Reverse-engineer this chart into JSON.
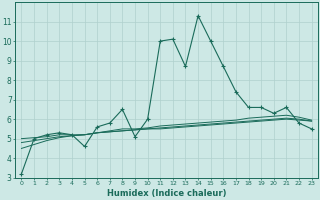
{
  "xlabel": "Humidex (Indice chaleur)",
  "x": [
    0,
    1,
    2,
    3,
    4,
    5,
    6,
    7,
    8,
    9,
    10,
    11,
    12,
    13,
    14,
    15,
    16,
    17,
    18,
    19,
    20,
    21,
    22,
    23
  ],
  "y_main": [
    3.2,
    5.0,
    5.2,
    5.3,
    5.2,
    4.6,
    5.6,
    5.8,
    6.5,
    5.1,
    6.0,
    10.0,
    10.1,
    8.7,
    11.3,
    10.0,
    8.7,
    7.4,
    6.6,
    6.6,
    6.3,
    6.6,
    5.8,
    5.5
  ],
  "y_trend1": [
    5.0,
    5.05,
    5.1,
    5.2,
    5.2,
    5.2,
    5.3,
    5.35,
    5.4,
    5.45,
    5.5,
    5.5,
    5.55,
    5.6,
    5.65,
    5.7,
    5.75,
    5.8,
    5.85,
    5.9,
    5.95,
    6.0,
    5.95,
    5.9
  ],
  "y_trend2": [
    4.8,
    4.9,
    5.0,
    5.1,
    5.15,
    5.2,
    5.3,
    5.35,
    5.4,
    5.45,
    5.5,
    5.55,
    5.6,
    5.65,
    5.7,
    5.75,
    5.8,
    5.85,
    5.9,
    5.95,
    6.0,
    6.05,
    6.0,
    5.9
  ],
  "y_trend3": [
    4.5,
    4.7,
    4.9,
    5.05,
    5.15,
    5.2,
    5.3,
    5.4,
    5.5,
    5.5,
    5.55,
    5.65,
    5.7,
    5.75,
    5.8,
    5.85,
    5.9,
    5.95,
    6.05,
    6.1,
    6.15,
    6.2,
    6.1,
    5.95
  ],
  "ylim": [
    3,
    12
  ],
  "xlim": [
    -0.5,
    23.5
  ],
  "yticks": [
    3,
    4,
    5,
    6,
    7,
    8,
    9,
    10,
    11
  ],
  "xticks": [
    0,
    1,
    2,
    3,
    4,
    5,
    6,
    7,
    8,
    9,
    10,
    11,
    12,
    13,
    14,
    15,
    16,
    17,
    18,
    19,
    20,
    21,
    22,
    23
  ],
  "line_color": "#1a6b5a",
  "bg_color": "#cde8e5",
  "grid_color": "#b0d0cd",
  "axis_bg": "#cde8e5"
}
